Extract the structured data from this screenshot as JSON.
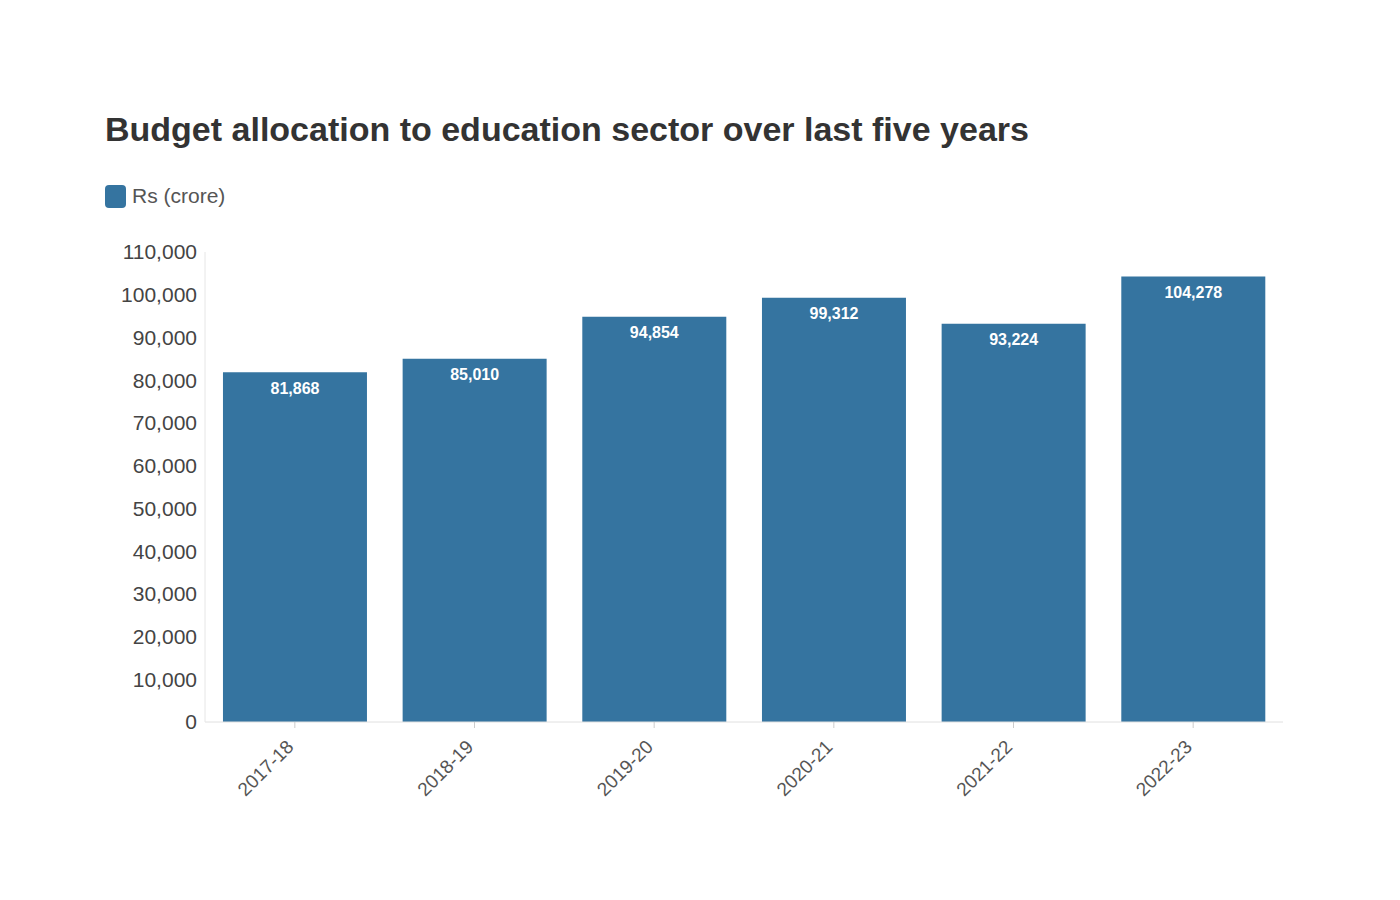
{
  "chart_data": {
    "type": "bar",
    "title": "Budget allocation to education sector over last five years",
    "categories": [
      "2017-18",
      "2018-19",
      "2019-20",
      "2020-21",
      "2021-22",
      "2022-23"
    ],
    "series": [
      {
        "name": "Rs (crore)",
        "color": "#3574a0",
        "values": [
          81868,
          85010,
          94854,
          99312,
          93224,
          104278
        ],
        "value_labels": [
          "81,868",
          "85,010",
          "94,854",
          "99,312",
          "93,224",
          "104,278"
        ]
      }
    ],
    "ylim": [
      0,
      110000
    ],
    "yticks": [
      0,
      {
        "value": 10000,
        "label": "10,000"
      },
      {
        "value": 20000,
        "label": "20,000"
      },
      {
        "value": 30000,
        "label": "30,000"
      },
      {
        "value": 40000,
        "label": "40,000"
      },
      {
        "value": 50000,
        "label": "50,000"
      },
      {
        "value": 60000,
        "label": "60,000"
      },
      {
        "value": 70000,
        "label": "70,000"
      },
      {
        "value": 80000,
        "label": "80,000"
      },
      {
        "value": 90000,
        "label": "90,000"
      },
      {
        "value": 100000,
        "label": "100,000"
      },
      {
        "value": 110000,
        "label": "110,000"
      }
    ],
    "grid": false,
    "legend": "top-left",
    "data_labels": true
  }
}
